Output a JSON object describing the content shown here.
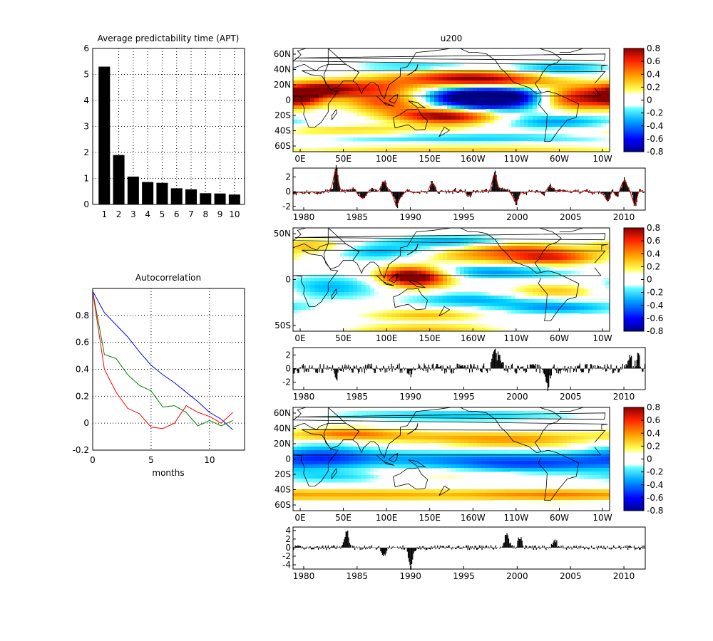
{
  "colors": {
    "positive": "#cc0000",
    "negative": "#0000aa",
    "bars": "#000000",
    "series_blue": "#0000ff",
    "series_green": "#007f00",
    "series_red": "#ff0000",
    "ts_fit": "#dd0000"
  },
  "chart_data": [
    {
      "id": "apt",
      "type": "bar",
      "title": "Average predictability time (APT)",
      "categories": [
        "1",
        "2",
        "3",
        "4",
        "5",
        "6",
        "7",
        "8",
        "9",
        "10"
      ],
      "values": [
        5.3,
        1.9,
        1.07,
        0.86,
        0.83,
        0.62,
        0.58,
        0.43,
        0.42,
        0.38
      ],
      "ylim": [
        0,
        6
      ],
      "yticks": [
        "0",
        "1",
        "2",
        "3",
        "4",
        "5",
        "6"
      ],
      "grid": "dotted"
    },
    {
      "id": "autocorr",
      "type": "line",
      "title": "Autocorrelation",
      "xlabel": "months",
      "xlim": [
        0,
        13
      ],
      "ylim": [
        -0.2,
        1.0
      ],
      "xticks": [
        "0",
        "5",
        "10"
      ],
      "yticks": [
        "-0.2",
        "0",
        "0.2",
        "0.4",
        "0.6",
        "0.8"
      ],
      "x": [
        0,
        1,
        2,
        3,
        4,
        5,
        6,
        7,
        8,
        9,
        10,
        11,
        12
      ],
      "series": [
        {
          "color_key": "series_blue",
          "values": [
            0.98,
            0.82,
            0.73,
            0.64,
            0.53,
            0.43,
            0.36,
            0.3,
            0.23,
            0.16,
            0.08,
            0.03,
            -0.05
          ]
        },
        {
          "color_key": "series_green",
          "values": [
            0.98,
            0.51,
            0.48,
            0.36,
            0.28,
            0.24,
            0.12,
            0.13,
            0.08,
            -0.02,
            0.02,
            -0.02,
            0.02
          ]
        },
        {
          "color_key": "series_red",
          "values": [
            0.98,
            0.4,
            0.23,
            0.11,
            0.07,
            -0.03,
            -0.04,
            0.0,
            0.13,
            0.08,
            0.05,
            0.0,
            0.08
          ]
        }
      ],
      "grid": "dotted"
    },
    {
      "id": "map1",
      "type": "heatmap",
      "title": "u200",
      "lat_range": [
        -65,
        65
      ],
      "yticks": [
        "60N",
        "40N",
        "20N",
        "0",
        "20S",
        "40S",
        "60S"
      ],
      "xticks": [
        "0E",
        "50E",
        "100E",
        "150E",
        "160W",
        "110W",
        "60W",
        "10W"
      ],
      "clim": [
        -0.8,
        0.8
      ],
      "colorbar_ticks": [
        "0.8",
        "0.6",
        "0.4",
        "0.2",
        "0",
        "-0.2",
        "-0.4",
        "-0.6",
        "-0.8"
      ],
      "features": [
        {
          "lon": 210,
          "lat": 3,
          "wx": 45,
          "wy": 10,
          "amp": -1.0
        },
        {
          "lon": 250,
          "lat": 5,
          "wx": 40,
          "wy": 12,
          "amp": -0.4
        },
        {
          "lon": 190,
          "lat": 28,
          "wx": 55,
          "wy": 7,
          "amp": 0.65
        },
        {
          "lon": 240,
          "lat": 22,
          "wx": 45,
          "wy": 7,
          "amp": 0.5
        },
        {
          "lon": 70,
          "lat": 15,
          "wx": 55,
          "wy": 8,
          "amp": 0.6
        },
        {
          "lon": 25,
          "lat": 12,
          "wx": 25,
          "wy": 6,
          "amp": 0.45
        },
        {
          "lon": 10,
          "lat": 0,
          "wx": 18,
          "wy": 7,
          "amp": 0.5
        },
        {
          "lon": 110,
          "lat": -3,
          "wx": 35,
          "wy": 8,
          "amp": 0.55
        },
        {
          "lon": 185,
          "lat": -22,
          "wx": 40,
          "wy": 7,
          "amp": 0.55
        },
        {
          "lon": 320,
          "lat": 2,
          "wx": 35,
          "wy": 10,
          "amp": 0.75
        },
        {
          "lon": 155,
          "lat": -18,
          "wx": 40,
          "wy": 6,
          "amp": 0.4
        },
        {
          "lon": 300,
          "lat": -28,
          "wx": 50,
          "wy": 7,
          "amp": -0.35
        },
        {
          "lon": 60,
          "lat": -38,
          "wx": 90,
          "wy": 5,
          "amp": 0.25
        },
        {
          "lon": 200,
          "lat": -48,
          "wx": 120,
          "wy": 5,
          "amp": -0.25
        },
        {
          "lon": 140,
          "lat": 42,
          "wx": 50,
          "wy": 5,
          "amp": -0.25
        },
        {
          "lon": 300,
          "lat": 40,
          "wx": 40,
          "wy": 6,
          "amp": -0.3
        },
        {
          "lon": 200,
          "lat": -62,
          "wx": 150,
          "wy": 4,
          "amp": 0.25
        }
      ]
    },
    {
      "id": "ts1",
      "type": "line",
      "xlim": [
        1979,
        2012
      ],
      "ylim": [
        -2.5,
        3.2
      ],
      "xticks": [
        "1980",
        "1985",
        "1990",
        "1995",
        "2000",
        "2005",
        "2010"
      ],
      "yticks": [
        "2",
        "0",
        "-2"
      ],
      "with_fit": true,
      "events": [
        [
          1983.0,
          3.0
        ],
        [
          1987.5,
          1.5
        ],
        [
          1992.0,
          1.4
        ],
        [
          1997.9,
          2.9
        ],
        [
          2003.0,
          0.9
        ],
        [
          2010.0,
          1.8
        ],
        [
          1988.7,
          -2.3
        ],
        [
          1999.8,
          -1.8
        ],
        [
          2008.5,
          -1.5
        ],
        [
          2011.0,
          -1.9
        ],
        [
          1985.5,
          -0.8
        ],
        [
          1995.5,
          -0.8
        ]
      ],
      "seed": 11,
      "noise": 0.35
    },
    {
      "id": "map2",
      "type": "heatmap",
      "lat_range": [
        -65,
        65
      ],
      "yticks": [
        "50N",
        "0",
        "50S"
      ],
      "xticks": [
        "0E",
        "50E",
        "100E",
        "150E",
        "160W",
        "110W",
        "60W",
        "10W"
      ],
      "clim": [
        -0.8,
        0.8
      ],
      "colorbar_ticks": [
        "0.8",
        "0.6",
        "0.4",
        "0.2",
        "0",
        "-0.2",
        "-0.4",
        "-0.6",
        "-0.8"
      ],
      "features": [
        {
          "lon": 145,
          "lat": 3,
          "wx": 25,
          "wy": 9,
          "amp": 0.8
        },
        {
          "lon": 120,
          "lat": 5,
          "wx": 20,
          "wy": 8,
          "amp": 0.4
        },
        {
          "lon": 290,
          "lat": 28,
          "wx": 40,
          "wy": 7,
          "amp": 0.65
        },
        {
          "lon": 250,
          "lat": 40,
          "wx": 40,
          "wy": 5,
          "amp": 0.35
        },
        {
          "lon": 200,
          "lat": 30,
          "wx": 40,
          "wy": 6,
          "amp": 0.3
        },
        {
          "lon": 230,
          "lat": 10,
          "wx": 60,
          "wy": 6,
          "amp": -0.35
        },
        {
          "lon": 300,
          "lat": -15,
          "wx": 40,
          "wy": 7,
          "amp": 0.3
        },
        {
          "lon": 300,
          "lat": -35,
          "wx": 50,
          "wy": 6,
          "amp": -0.35
        },
        {
          "lon": 200,
          "lat": -25,
          "wx": 50,
          "wy": 6,
          "amp": -0.3
        },
        {
          "lon": 150,
          "lat": -45,
          "wx": 50,
          "wy": 5,
          "amp": 0.3
        },
        {
          "lon": 40,
          "lat": -10,
          "wx": 40,
          "wy": 10,
          "amp": -0.3
        },
        {
          "lon": 20,
          "lat": 42,
          "wx": 30,
          "wy": 6,
          "amp": 0.3
        },
        {
          "lon": 100,
          "lat": 35,
          "wx": 40,
          "wy": 7,
          "amp": -0.3
        },
        {
          "lon": 180,
          "lat": 48,
          "wx": 50,
          "wy": 5,
          "amp": -0.3
        },
        {
          "lon": 150,
          "lat": -62,
          "wx": 60,
          "wy": 4,
          "amp": 0.3
        }
      ]
    },
    {
      "id": "ts2",
      "type": "bar",
      "xlim": [
        1979,
        2012
      ],
      "ylim": [
        -3.1,
        3.1
      ],
      "xticks": [
        "1980",
        "1985",
        "1990",
        "1995",
        "2000",
        "2005",
        "2010"
      ],
      "yticks": [
        "2",
        "0",
        "-2"
      ],
      "with_fit": false,
      "events": [
        [
          1997.8,
          3.0
        ],
        [
          1998.3,
          2.0
        ],
        [
          2002.8,
          -2.8
        ],
        [
          2010.5,
          2.2
        ],
        [
          2011.3,
          1.9
        ],
        [
          1983.0,
          -1.2
        ],
        [
          1990.0,
          -1.2
        ]
      ],
      "seed": 23,
      "noise": 0.75
    },
    {
      "id": "map3",
      "type": "heatmap",
      "lat_range": [
        -65,
        65
      ],
      "yticks": [
        "60N",
        "40N",
        "20N",
        "0",
        "20S",
        "40S",
        "60S"
      ],
      "xticks": [
        "0E",
        "50E",
        "100E",
        "150E",
        "160W",
        "110W",
        "60W",
        "10W"
      ],
      "clim": [
        -0.8,
        0.8
      ],
      "colorbar_ticks": [
        "0.8",
        "0.6",
        "0.4",
        "0.2",
        "0",
        "-0.2",
        "-0.4",
        "-0.6",
        "-0.8"
      ],
      "features": [
        {
          "lon": 180,
          "lat": 0,
          "wx": 200,
          "wy": 8,
          "amp": -0.3
        },
        {
          "lon": 30,
          "lat": 5,
          "wx": 40,
          "wy": 12,
          "amp": -0.3
        },
        {
          "lon": 270,
          "lat": -8,
          "wx": 70,
          "wy": 7,
          "amp": -0.3
        },
        {
          "lon": 180,
          "lat": 28,
          "wx": 150,
          "wy": 5,
          "amp": 0.28
        },
        {
          "lon": 60,
          "lat": 33,
          "wx": 40,
          "wy": 5,
          "amp": 0.35
        },
        {
          "lon": 250,
          "lat": 20,
          "wx": 60,
          "wy": 6,
          "amp": 0.25
        },
        {
          "lon": 90,
          "lat": -45,
          "wx": 100,
          "wy": 5,
          "amp": 0.35
        },
        {
          "lon": 280,
          "lat": -45,
          "wx": 60,
          "wy": 5,
          "amp": 0.35
        },
        {
          "lon": 150,
          "lat": -20,
          "wx": 60,
          "wy": 5,
          "amp": 0.2
        },
        {
          "lon": 180,
          "lat": 55,
          "wx": 100,
          "wy": 5,
          "amp": -0.25
        },
        {
          "lon": 60,
          "lat": -22,
          "wx": 60,
          "wy": 5,
          "amp": -0.25
        }
      ]
    },
    {
      "id": "ts3",
      "type": "bar",
      "xlim": [
        1979,
        2012
      ],
      "ylim": [
        -5,
        4.8
      ],
      "xticks": [
        "1980",
        "1985",
        "1990",
        "1995",
        "2000",
        "2005",
        "2010"
      ],
      "yticks": [
        "4",
        "2",
        "0",
        "-2",
        "-4"
      ],
      "with_fit": false,
      "events": [
        [
          1984.0,
          4.2
        ],
        [
          1990.0,
          -4.8
        ],
        [
          1999.0,
          3.8
        ],
        [
          2000.2,
          2.5
        ],
        [
          1987.5,
          -1.8
        ],
        [
          2003.5,
          1.8
        ]
      ],
      "seed": 41,
      "noise": 0.55
    }
  ]
}
